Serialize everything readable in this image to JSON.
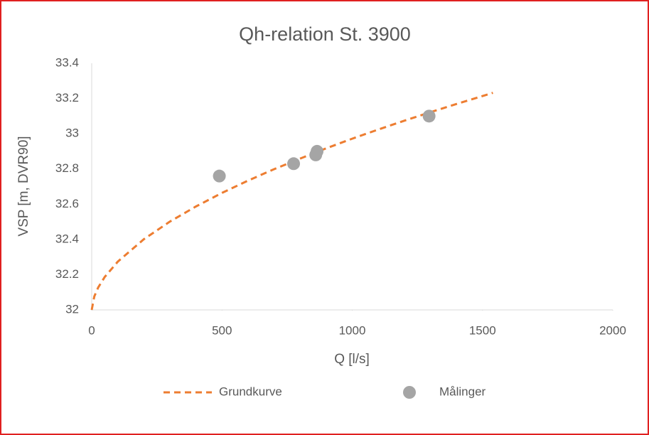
{
  "chart_data": {
    "type": "line",
    "title": "Qh-relation St. 3900",
    "x_label": "Q [l/s]",
    "y_label": "VSP [m, DVR90]",
    "xlim": [
      0,
      2000
    ],
    "xticks": [
      0,
      500,
      1000,
      1500,
      2000
    ],
    "ylim": [
      32,
      33.4
    ],
    "yticks": [
      32,
      32.2,
      32.4,
      32.6,
      32.8,
      33,
      33.2,
      33.4
    ],
    "grid": false,
    "legend": "bottom",
    "series": [
      {
        "name": "Grundkurve",
        "type": "line",
        "dashed": true,
        "color": "#ed7d31",
        "x": [
          0,
          10,
          25,
          50,
          100,
          200,
          300,
          400,
          500,
          600,
          700,
          800,
          900,
          1000,
          1100,
          1200,
          1300,
          1400,
          1540
        ],
        "values": [
          32,
          32.077,
          32.128,
          32.187,
          32.274,
          32.401,
          32.501,
          32.587,
          32.664,
          32.734,
          32.799,
          32.859,
          32.917,
          32.972,
          33.024,
          33.074,
          33.122,
          33.169,
          33.232
        ]
      },
      {
        "name": "Målinger",
        "type": "scatter",
        "color": "#a5a5a5",
        "x": [
          490,
          775,
          860,
          865,
          1295
        ],
        "values": [
          32.76,
          32.83,
          32.88,
          32.9,
          33.1
        ]
      }
    ]
  }
}
